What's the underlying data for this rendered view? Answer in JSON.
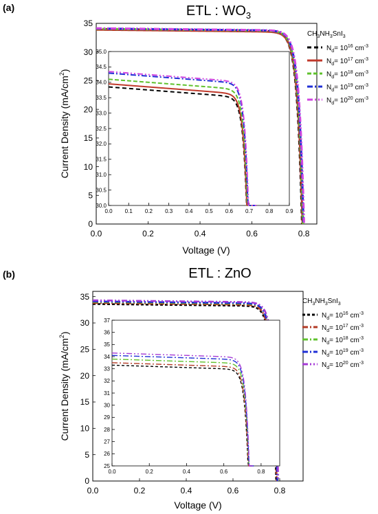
{
  "panels": [
    {
      "label": "(a)",
      "chart_data": {
        "type": "line",
        "title": "ETL : WO",
        "title_sub": "3",
        "xlabel": "Voltage (V)",
        "ylabel": "Current Density (mA/cm",
        "ylabel_sup": "2",
        "ylabel_end": ")",
        "xlim": [
          0,
          0.85
        ],
        "ylim": [
          0,
          35
        ],
        "xticks": [
          "0.0",
          "0.2",
          "0.4",
          "0.6",
          "0.8"
        ],
        "yticks": [
          "0",
          "5",
          "10",
          "15",
          "20",
          "25",
          "30",
          "35"
        ],
        "legend": {
          "title": "CH3NH3SnI3",
          "placement": "right",
          "entries": [
            {
              "label": "Nd= 1016 cm-3",
              "color": "#000000",
              "dash": "6,4"
            },
            {
              "label": "Nd= 1017 cm-3",
              "color": "#c0392b",
              "dash": "none"
            },
            {
              "label": "Nd= 1018 cm-3",
              "color": "#5fc12c",
              "dash": "6,3"
            },
            {
              "label": "Nd= 1019 cm-3",
              "color": "#1f2fd6",
              "dash": "8,3,2,3"
            },
            {
              "label": "Nd= 1020 cm-3",
              "color": "#d146e0",
              "dash": "8,3,2,3,2,3"
            }
          ]
        },
        "series": [
          {
            "name": "Nd= 10^16 cm^-3",
            "jsc": 34.0,
            "voc": 0.793
          },
          {
            "name": "Nd= 10^17 cm^-3",
            "jsc": 33.9,
            "voc": 0.795
          },
          {
            "name": "Nd= 10^18 cm^-3",
            "jsc": 34.05,
            "voc": 0.797
          },
          {
            "name": "Nd= 10^19 cm^-3",
            "jsc": 34.1,
            "voc": 0.799
          },
          {
            "name": "Nd= 10^20 cm^-3",
            "jsc": 34.15,
            "voc": 0.801
          }
        ],
        "inset": {
          "xlim": [
            0,
            0.9
          ],
          "ylim": [
            30,
            35
          ],
          "xticks": [
            "0.0",
            "0.1",
            "0.2",
            "0.3",
            "0.4",
            "0.5",
            "0.6",
            "0.7",
            "0.8",
            "0.9"
          ],
          "yticks": [
            "30.0",
            "30.5",
            "31.0",
            "31.5",
            "32.0",
            "32.5",
            "33.0",
            "33.5",
            "34.0",
            "34.5",
            "35.0"
          ],
          "series": [
            {
              "jsc": 33.85,
              "voc": 0.73
            },
            {
              "jsc": 33.95,
              "voc": 0.731
            },
            {
              "jsc": 34.1,
              "voc": 0.733
            },
            {
              "jsc": 34.3,
              "voc": 0.735
            },
            {
              "jsc": 34.35,
              "voc": 0.737
            }
          ]
        }
      }
    },
    {
      "label": "(b)",
      "chart_data": {
        "type": "line",
        "title": "ETL : ZnO",
        "title_sub": "",
        "xlabel": "Voltage (V)",
        "ylabel": "Current Density (mA/cm",
        "ylabel_sup": "2",
        "ylabel_end": ")",
        "xlim": [
          0,
          0.9
        ],
        "ylim": [
          0,
          36
        ],
        "xticks": [
          "0.0",
          "0.2",
          "0.4",
          "0.6",
          "0.8"
        ],
        "yticks": [
          "0",
          "5",
          "10",
          "15",
          "20",
          "25",
          "30",
          "35"
        ],
        "legend": {
          "title": "CH3NH3SnI3",
          "placement": "right",
          "entries": [
            {
              "label": "Nd= 1016 cm-3",
              "color": "#000000",
              "dash": "4,3"
            },
            {
              "label": "Nd= 1017 cm-3",
              "color": "#b23a25",
              "dash": "8,3,2,3"
            },
            {
              "label": "Nd= 1018 cm-3",
              "color": "#5fc12c",
              "dash": "8,3,2,3"
            },
            {
              "label": "Nd= 1019 cm-3",
              "color": "#1f2fd6",
              "dash": "8,3,2,3"
            },
            {
              "label": "Nd= 1020 cm-3",
              "color": "#a43ad6",
              "dash": "8,3,2,3,2,3"
            }
          ]
        },
        "series": [
          {
            "name": "Nd= 10^16 cm^-3",
            "jsc": 33.6,
            "voc": 0.785
          },
          {
            "name": "Nd= 10^17 cm^-3",
            "jsc": 33.8,
            "voc": 0.787
          },
          {
            "name": "Nd= 10^18 cm^-3",
            "jsc": 34.0,
            "voc": 0.792
          },
          {
            "name": "Nd= 10^19 cm^-3",
            "jsc": 34.1,
            "voc": 0.79
          },
          {
            "name": "Nd= 10^20 cm^-3",
            "jsc": 34.3,
            "voc": 0.794
          }
        ],
        "inset": {
          "xlim": [
            0,
            0.9
          ],
          "ylim": [
            25,
            37
          ],
          "xticks": [
            "0.0",
            "0.2",
            "0.4",
            "0.6",
            "0.8"
          ],
          "yticks": [
            "25",
            "26",
            "27",
            "28",
            "29",
            "30",
            "31",
            "32",
            "33",
            "34",
            "35",
            "36",
            "37"
          ],
          "series": [
            {
              "jsc": 33.3,
              "voc": 0.757
            },
            {
              "jsc": 33.5,
              "voc": 0.758
            },
            {
              "jsc": 33.8,
              "voc": 0.76
            },
            {
              "jsc": 34.1,
              "voc": 0.761
            },
            {
              "jsc": 34.3,
              "voc": 0.762
            }
          ]
        }
      }
    }
  ]
}
